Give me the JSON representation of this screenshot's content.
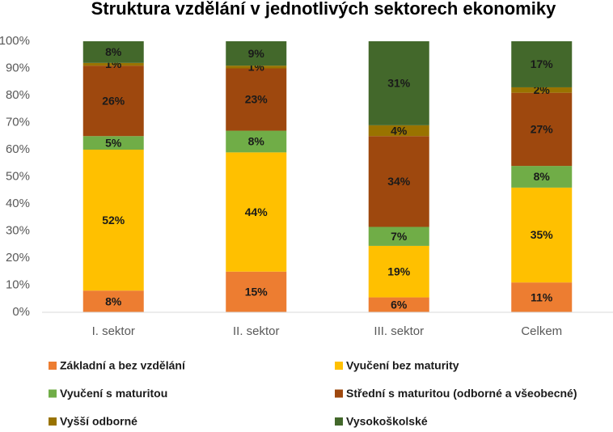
{
  "chart_data": {
    "type": "stacked_bar",
    "title": "Struktura vzdělání v jednotlivých sektorech ekonomiky",
    "categories": [
      "I. sektor",
      "II. sektor",
      "III. sektor",
      "Celkem"
    ],
    "series": [
      {
        "name": "Základní a bez vzdělání",
        "color": "#ed7d31",
        "values": [
          8,
          15,
          5.5,
          11
        ],
        "value_labels": [
          "8%",
          "15%",
          "6%",
          "11%"
        ]
      },
      {
        "name": "Vyučení bez maturity",
        "color": "#ffc000",
        "values": [
          52,
          44,
          19,
          35
        ],
        "value_labels": [
          "52%",
          "44%",
          "19%",
          "35%"
        ]
      },
      {
        "name": "Vyučení s maturitou",
        "color": "#70ad47",
        "values": [
          5,
          8,
          7,
          8
        ],
        "value_labels": [
          "5%",
          "8%",
          "7%",
          "8%"
        ]
      },
      {
        "name": "Střední s maturitou (odborné a všeobecné)",
        "color": "#9e480e",
        "values": [
          26,
          23,
          33.5,
          27
        ],
        "value_labels": [
          "26%",
          "23%",
          "34%",
          "27%"
        ]
      },
      {
        "name": "Vyšší odborné",
        "color": "#997300",
        "values": [
          1,
          1,
          4,
          2
        ],
        "value_labels": [
          "1%",
          "1%",
          "4%",
          "2%"
        ]
      },
      {
        "name": "Vysokoškolské",
        "color": "#43682b",
        "values": [
          8,
          9,
          31,
          17
        ],
        "value_labels": [
          "8%",
          "9%",
          "31%",
          "17%"
        ]
      }
    ],
    "ylim": [
      0,
      100
    ],
    "yticks": [
      {
        "value": 0,
        "label": "0%"
      },
      {
        "value": 10,
        "label": "10%"
      },
      {
        "value": 20,
        "label": "20%"
      },
      {
        "value": 30,
        "label": "30%"
      },
      {
        "value": 40,
        "label": "40%"
      },
      {
        "value": 50,
        "label": "50%"
      },
      {
        "value": 60,
        "label": "60%"
      },
      {
        "value": 70,
        "label": "70%"
      },
      {
        "value": 80,
        "label": "80%"
      },
      {
        "value": 90,
        "label": "90%"
      },
      {
        "value": 100,
        "label": "100%"
      }
    ],
    "grid": false,
    "legend": "bottom"
  }
}
